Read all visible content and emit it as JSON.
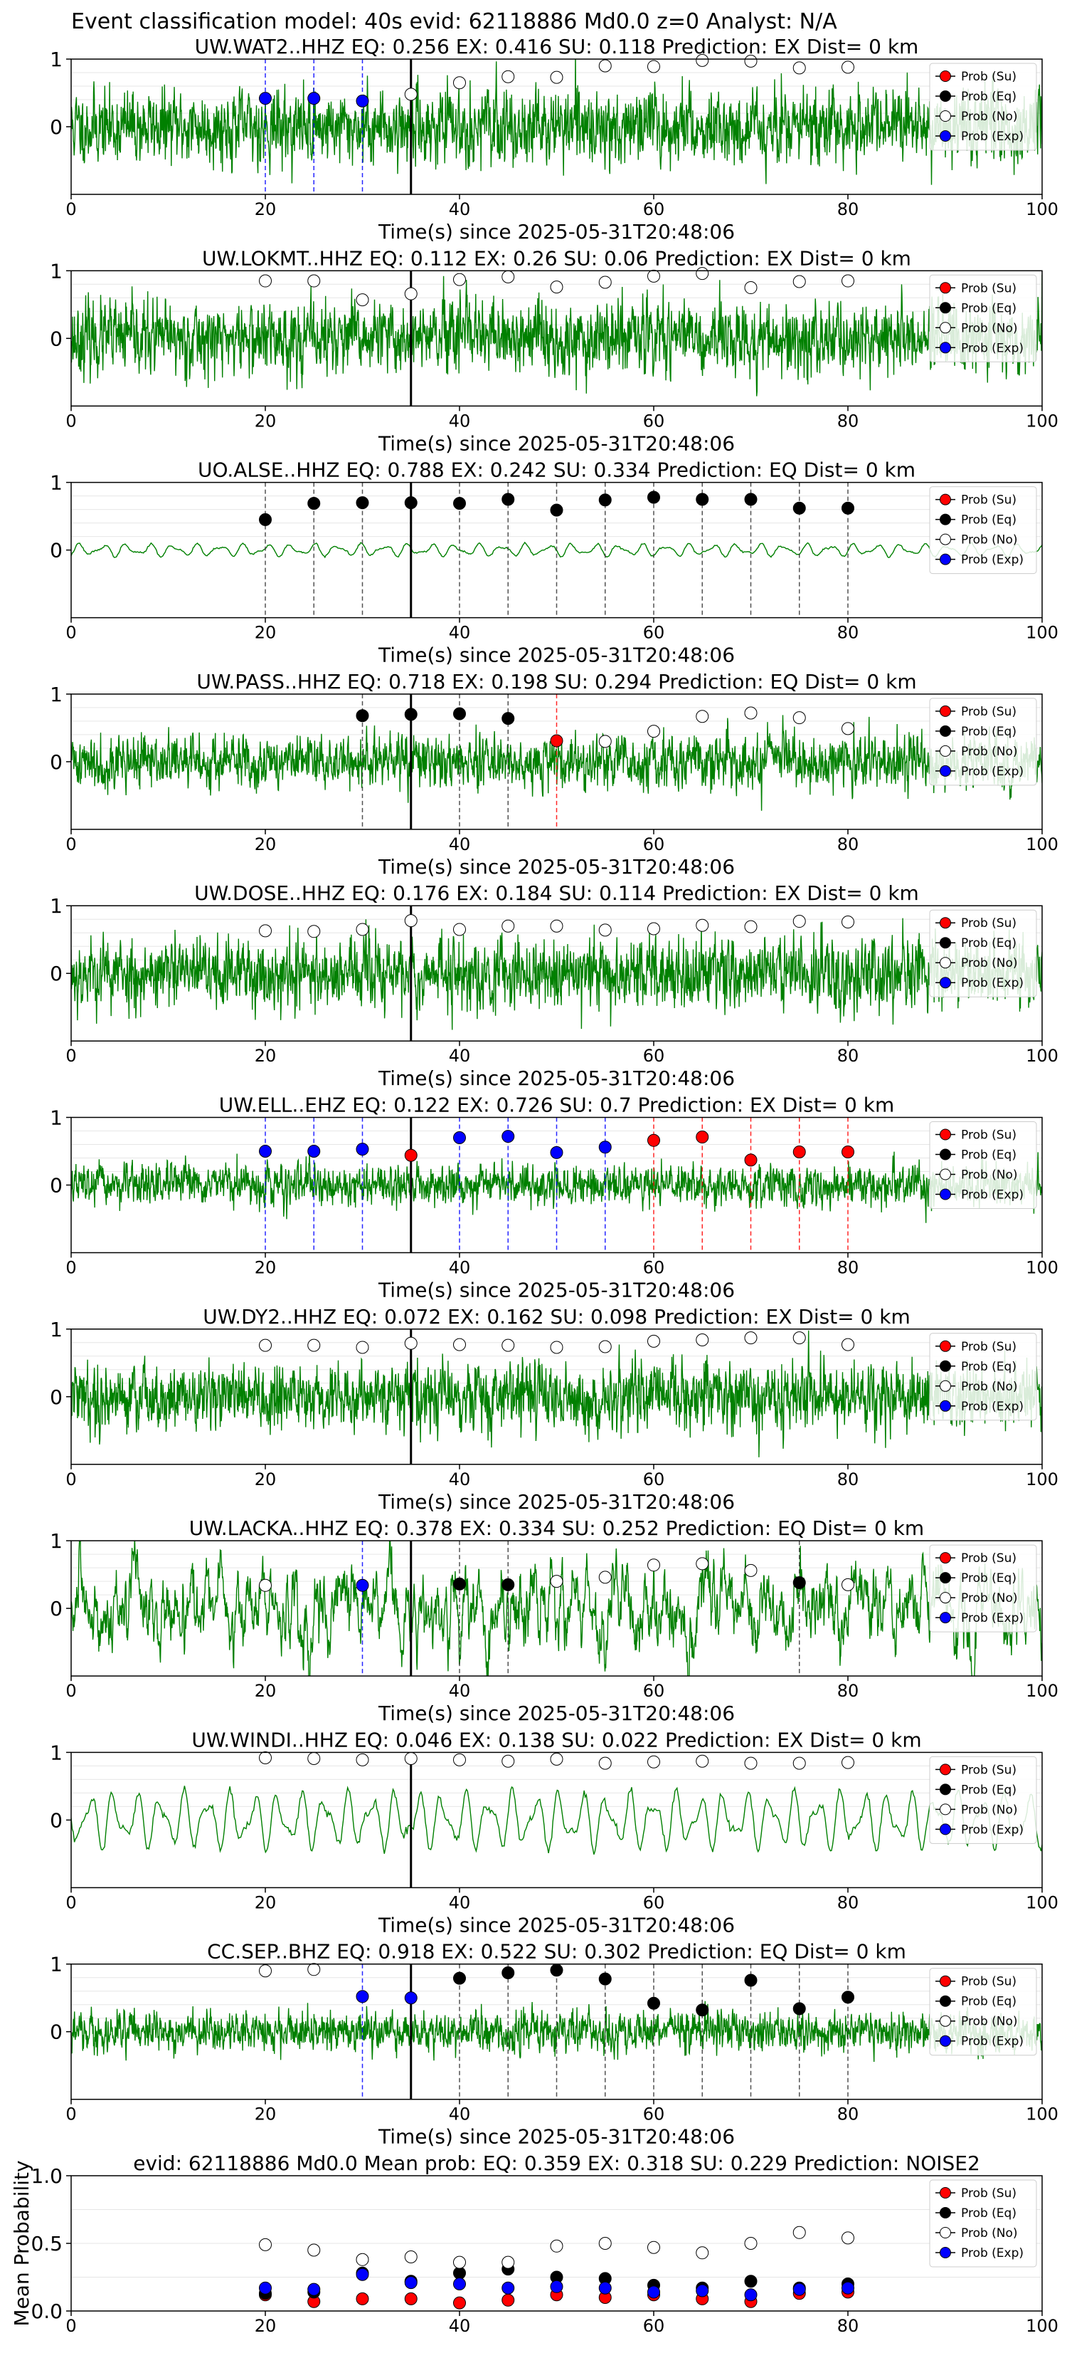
{
  "figure": {
    "title": "Event classification model: 40s evid: 62118886 Md0.0 z=0 Analyst: N/A"
  },
  "legend": {
    "entries": [
      {
        "label": "Prob (Su)",
        "class": "su",
        "color": "#ff0000"
      },
      {
        "label": "Prob (Eq)",
        "class": "eq",
        "color": "#000000"
      },
      {
        "label": "Prob (No)",
        "class": "no",
        "color": "#ffffff"
      },
      {
        "label": "Prob (Exp)",
        "class": "exp",
        "color": "#0000ff"
      }
    ]
  },
  "colors": {
    "waveform": "#008000",
    "su": "#ff0000",
    "eq": "#000000",
    "no": "#ffffff",
    "exp": "#0000ff",
    "origin_line": "#000000"
  },
  "chart_data": [
    {
      "type": "line",
      "title": "UW.WAT2..HHZ    EQ: 0.256  EX: 0.416  SU: 0.118   Prediction: EX    Dist= 0 km",
      "xlabel": "Time(s) since 2025-05-31T20:48:06",
      "xlim": [
        0,
        100
      ],
      "ylim": [
        -1,
        1
      ],
      "xticks": [
        "0",
        "20",
        "40",
        "60",
        "80",
        "100"
      ],
      "yticks": [
        "0",
        "1"
      ],
      "waveform": {
        "amplitude": 0.55,
        "style": "noisy",
        "seed": 11
      },
      "origin_time": 35,
      "points": [
        {
          "x": 20,
          "y": 0.42,
          "class": "exp"
        },
        {
          "x": 25,
          "y": 0.42,
          "class": "exp"
        },
        {
          "x": 30,
          "y": 0.38,
          "class": "exp"
        },
        {
          "x": 35,
          "y": 0.48,
          "class": "no"
        },
        {
          "x": 40,
          "y": 0.65,
          "class": "no"
        },
        {
          "x": 45,
          "y": 0.74,
          "class": "no"
        },
        {
          "x": 50,
          "y": 0.73,
          "class": "no"
        },
        {
          "x": 55,
          "y": 0.9,
          "class": "no"
        },
        {
          "x": 60,
          "y": 0.89,
          "class": "no"
        },
        {
          "x": 65,
          "y": 0.98,
          "class": "no"
        },
        {
          "x": 70,
          "y": 0.97,
          "class": "no"
        },
        {
          "x": 75,
          "y": 0.87,
          "class": "no"
        },
        {
          "x": 80,
          "y": 0.88,
          "class": "no"
        }
      ]
    },
    {
      "type": "line",
      "title": "UW.LOKMT..HHZ   EQ: 0.112  EX: 0.26  SU: 0.06   Prediction: EX    Dist= 0 km",
      "xlabel": "Time(s) since 2025-05-31T20:48:06",
      "xlim": [
        0,
        100
      ],
      "ylim": [
        -1,
        1
      ],
      "xticks": [
        "0",
        "20",
        "40",
        "60",
        "80",
        "100"
      ],
      "yticks": [
        "0",
        "1"
      ],
      "waveform": {
        "amplitude": 0.55,
        "style": "noisy",
        "seed": 23
      },
      "origin_time": 35,
      "points": [
        {
          "x": 20,
          "y": 0.85,
          "class": "no"
        },
        {
          "x": 25,
          "y": 0.85,
          "class": "no"
        },
        {
          "x": 30,
          "y": 0.57,
          "class": "no"
        },
        {
          "x": 35,
          "y": 0.66,
          "class": "no"
        },
        {
          "x": 40,
          "y": 0.87,
          "class": "no"
        },
        {
          "x": 45,
          "y": 0.91,
          "class": "no"
        },
        {
          "x": 50,
          "y": 0.76,
          "class": "no"
        },
        {
          "x": 55,
          "y": 0.83,
          "class": "no"
        },
        {
          "x": 60,
          "y": 0.92,
          "class": "no"
        },
        {
          "x": 65,
          "y": 0.96,
          "class": "no"
        },
        {
          "x": 70,
          "y": 0.75,
          "class": "no"
        },
        {
          "x": 75,
          "y": 0.84,
          "class": "no"
        },
        {
          "x": 80,
          "y": 0.85,
          "class": "no"
        }
      ]
    },
    {
      "type": "line",
      "title": "UO.ALSE..HHZ   EQ: 0.788  EX: 0.242  SU: 0.334   Prediction: EQ    Dist= 0 km",
      "xlabel": "Time(s) since 2025-05-31T20:48:06",
      "xlim": [
        0,
        100
      ],
      "ylim": [
        -1,
        1
      ],
      "xticks": [
        "0",
        "20",
        "40",
        "60",
        "80",
        "100"
      ],
      "yticks": [
        "0",
        "1"
      ],
      "waveform": {
        "amplitude": 0.12,
        "style": "smooth",
        "seed": 37
      },
      "origin_time": 35,
      "points": [
        {
          "x": 20,
          "y": 0.45,
          "class": "eq"
        },
        {
          "x": 25,
          "y": 0.69,
          "class": "eq"
        },
        {
          "x": 30,
          "y": 0.7,
          "class": "eq"
        },
        {
          "x": 35,
          "y": 0.7,
          "class": "eq"
        },
        {
          "x": 40,
          "y": 0.69,
          "class": "eq"
        },
        {
          "x": 45,
          "y": 0.75,
          "class": "eq"
        },
        {
          "x": 50,
          "y": 0.59,
          "class": "eq"
        },
        {
          "x": 55,
          "y": 0.74,
          "class": "eq"
        },
        {
          "x": 60,
          "y": 0.78,
          "class": "eq"
        },
        {
          "x": 65,
          "y": 0.75,
          "class": "eq"
        },
        {
          "x": 70,
          "y": 0.75,
          "class": "eq"
        },
        {
          "x": 75,
          "y": 0.62,
          "class": "eq"
        },
        {
          "x": 80,
          "y": 0.62,
          "class": "eq"
        }
      ]
    },
    {
      "type": "line",
      "title": "UW.PASS..HHZ   EQ: 0.718  EX: 0.198  SU: 0.294   Prediction: EQ    Dist= 0 km",
      "xlabel": "Time(s) since 2025-05-31T20:48:06",
      "xlim": [
        0,
        100
      ],
      "ylim": [
        -1,
        1
      ],
      "xticks": [
        "0",
        "20",
        "40",
        "60",
        "80",
        "100"
      ],
      "yticks": [
        "0",
        "1"
      ],
      "waveform": {
        "amplitude": 0.4,
        "style": "noisy",
        "seed": 41
      },
      "origin_time": 35,
      "points": [
        {
          "x": 30,
          "y": 0.68,
          "class": "eq"
        },
        {
          "x": 35,
          "y": 0.7,
          "class": "eq"
        },
        {
          "x": 40,
          "y": 0.71,
          "class": "eq"
        },
        {
          "x": 45,
          "y": 0.64,
          "class": "eq"
        },
        {
          "x": 50,
          "y": 0.31,
          "class": "su"
        },
        {
          "x": 55,
          "y": 0.3,
          "class": "no"
        },
        {
          "x": 60,
          "y": 0.45,
          "class": "no"
        },
        {
          "x": 65,
          "y": 0.67,
          "class": "no"
        },
        {
          "x": 70,
          "y": 0.72,
          "class": "no"
        },
        {
          "x": 75,
          "y": 0.65,
          "class": "no"
        },
        {
          "x": 80,
          "y": 0.49,
          "class": "no"
        }
      ]
    },
    {
      "type": "line",
      "title": "UW.DOSE..HHZ   EQ: 0.176  EX: 0.184  SU: 0.114   Prediction: EX    Dist= 0 km",
      "xlabel": "Time(s) since 2025-05-31T20:48:06",
      "xlim": [
        0,
        100
      ],
      "ylim": [
        -1,
        1
      ],
      "xticks": [
        "0",
        "20",
        "40",
        "60",
        "80",
        "100"
      ],
      "yticks": [
        "0",
        "1"
      ],
      "waveform": {
        "amplitude": 0.55,
        "style": "noisy",
        "seed": 53
      },
      "origin_time": 35,
      "points": [
        {
          "x": 20,
          "y": 0.63,
          "class": "no"
        },
        {
          "x": 25,
          "y": 0.62,
          "class": "no"
        },
        {
          "x": 30,
          "y": 0.65,
          "class": "no"
        },
        {
          "x": 35,
          "y": 0.78,
          "class": "no"
        },
        {
          "x": 40,
          "y": 0.65,
          "class": "no"
        },
        {
          "x": 45,
          "y": 0.7,
          "class": "no"
        },
        {
          "x": 50,
          "y": 0.7,
          "class": "no"
        },
        {
          "x": 55,
          "y": 0.64,
          "class": "no"
        },
        {
          "x": 60,
          "y": 0.66,
          "class": "no"
        },
        {
          "x": 65,
          "y": 0.71,
          "class": "no"
        },
        {
          "x": 70,
          "y": 0.69,
          "class": "no"
        },
        {
          "x": 75,
          "y": 0.77,
          "class": "no"
        },
        {
          "x": 80,
          "y": 0.76,
          "class": "no"
        }
      ]
    },
    {
      "type": "line",
      "title": "UW.ELL..EHZ   EQ: 0.122  EX: 0.726  SU: 0.7   Prediction: EX    Dist= 0 km",
      "xlabel": "Time(s) since 2025-05-31T20:48:06",
      "xlim": [
        0,
        100
      ],
      "ylim": [
        -1,
        1
      ],
      "xticks": [
        "0",
        "20",
        "40",
        "60",
        "80",
        "100"
      ],
      "yticks": [
        "0",
        "1"
      ],
      "waveform": {
        "amplitude": 0.3,
        "style": "noisy",
        "seed": 67
      },
      "origin_time": 35,
      "points": [
        {
          "x": 20,
          "y": 0.5,
          "class": "exp"
        },
        {
          "x": 25,
          "y": 0.5,
          "class": "exp"
        },
        {
          "x": 30,
          "y": 0.53,
          "class": "exp"
        },
        {
          "x": 35,
          "y": 0.44,
          "class": "su"
        },
        {
          "x": 40,
          "y": 0.7,
          "class": "exp"
        },
        {
          "x": 45,
          "y": 0.72,
          "class": "exp"
        },
        {
          "x": 50,
          "y": 0.48,
          "class": "exp"
        },
        {
          "x": 55,
          "y": 0.56,
          "class": "exp"
        },
        {
          "x": 60,
          "y": 0.66,
          "class": "su"
        },
        {
          "x": 65,
          "y": 0.71,
          "class": "su"
        },
        {
          "x": 70,
          "y": 0.37,
          "class": "su"
        },
        {
          "x": 75,
          "y": 0.49,
          "class": "su"
        },
        {
          "x": 80,
          "y": 0.49,
          "class": "su"
        }
      ]
    },
    {
      "type": "line",
      "title": "UW.DY2..HHZ   EQ: 0.072  EX: 0.162  SU: 0.098   Prediction: EX    Dist= 0 km",
      "xlabel": "Time(s) since 2025-05-31T20:48:06",
      "xlim": [
        0,
        100
      ],
      "ylim": [
        -1,
        1
      ],
      "xticks": [
        "0",
        "20",
        "40",
        "60",
        "80",
        "100"
      ],
      "yticks": [
        "0",
        "1"
      ],
      "waveform": {
        "amplitude": 0.5,
        "style": "noisy",
        "seed": 79
      },
      "origin_time": 35,
      "points": [
        {
          "x": 20,
          "y": 0.76,
          "class": "no"
        },
        {
          "x": 25,
          "y": 0.76,
          "class": "no"
        },
        {
          "x": 30,
          "y": 0.73,
          "class": "no"
        },
        {
          "x": 35,
          "y": 0.79,
          "class": "no"
        },
        {
          "x": 40,
          "y": 0.77,
          "class": "no"
        },
        {
          "x": 45,
          "y": 0.76,
          "class": "no"
        },
        {
          "x": 50,
          "y": 0.73,
          "class": "no"
        },
        {
          "x": 55,
          "y": 0.74,
          "class": "no"
        },
        {
          "x": 60,
          "y": 0.82,
          "class": "no"
        },
        {
          "x": 65,
          "y": 0.84,
          "class": "no"
        },
        {
          "x": 70,
          "y": 0.87,
          "class": "no"
        },
        {
          "x": 75,
          "y": 0.87,
          "class": "no"
        },
        {
          "x": 80,
          "y": 0.77,
          "class": "no"
        }
      ]
    },
    {
      "type": "line",
      "title": "UW.LACKA..HHZ   EQ: 0.378  EX: 0.334  SU: 0.252   Prediction: EQ    Dist= 0 km",
      "xlabel": "Time(s) since 2025-05-31T20:48:06",
      "xlim": [
        0,
        100
      ],
      "ylim": [
        -1,
        1
      ],
      "xticks": [
        "0",
        "20",
        "40",
        "60",
        "80",
        "100"
      ],
      "yticks": [
        "0",
        "1"
      ],
      "waveform": {
        "amplitude": 0.45,
        "style": "medium",
        "seed": 83
      },
      "origin_time": 35,
      "points": [
        {
          "x": 20,
          "y": 0.34,
          "class": "no"
        },
        {
          "x": 30,
          "y": 0.34,
          "class": "exp"
        },
        {
          "x": 40,
          "y": 0.36,
          "class": "eq"
        },
        {
          "x": 45,
          "y": 0.35,
          "class": "eq"
        },
        {
          "x": 50,
          "y": 0.4,
          "class": "no"
        },
        {
          "x": 55,
          "y": 0.46,
          "class": "no"
        },
        {
          "x": 60,
          "y": 0.64,
          "class": "no"
        },
        {
          "x": 65,
          "y": 0.66,
          "class": "no"
        },
        {
          "x": 70,
          "y": 0.56,
          "class": "no"
        },
        {
          "x": 75,
          "y": 0.38,
          "class": "eq"
        },
        {
          "x": 80,
          "y": 0.35,
          "class": "no"
        }
      ]
    },
    {
      "type": "line",
      "title": "UW.WINDI..HHZ   EQ: 0.046  EX: 0.138  SU: 0.022   Prediction: EX    Dist= 0 km",
      "xlabel": "Time(s) since 2025-05-31T20:48:06",
      "xlim": [
        0,
        100
      ],
      "ylim": [
        -1,
        1
      ],
      "xticks": [
        "0",
        "20",
        "40",
        "60",
        "80",
        "100"
      ],
      "yticks": [
        "0",
        "1"
      ],
      "waveform": {
        "amplitude": 0.55,
        "style": "smooth",
        "seed": 97
      },
      "origin_time": 35,
      "points": [
        {
          "x": 20,
          "y": 0.92,
          "class": "no"
        },
        {
          "x": 25,
          "y": 0.91,
          "class": "no"
        },
        {
          "x": 30,
          "y": 0.89,
          "class": "no"
        },
        {
          "x": 35,
          "y": 0.91,
          "class": "no"
        },
        {
          "x": 40,
          "y": 0.89,
          "class": "no"
        },
        {
          "x": 45,
          "y": 0.87,
          "class": "no"
        },
        {
          "x": 50,
          "y": 0.9,
          "class": "no"
        },
        {
          "x": 55,
          "y": 0.84,
          "class": "no"
        },
        {
          "x": 60,
          "y": 0.86,
          "class": "no"
        },
        {
          "x": 65,
          "y": 0.87,
          "class": "no"
        },
        {
          "x": 70,
          "y": 0.84,
          "class": "no"
        },
        {
          "x": 75,
          "y": 0.84,
          "class": "no"
        },
        {
          "x": 80,
          "y": 0.85,
          "class": "no"
        }
      ]
    },
    {
      "type": "line",
      "title": "CC.SEP..BHZ   EQ: 0.918  EX: 0.522  SU: 0.302   Prediction: EQ    Dist= 0 km",
      "xlabel": "Time(s) since 2025-05-31T20:48:06",
      "xlim": [
        0,
        100
      ],
      "ylim": [
        -1,
        1
      ],
      "xticks": [
        "0",
        "20",
        "40",
        "60",
        "80",
        "100"
      ],
      "yticks": [
        "0",
        "1"
      ],
      "waveform": {
        "amplitude": 0.3,
        "style": "noisy",
        "seed": 103
      },
      "origin_time": 35,
      "points": [
        {
          "x": 20,
          "y": 0.9,
          "class": "no"
        },
        {
          "x": 25,
          "y": 0.92,
          "class": "no"
        },
        {
          "x": 30,
          "y": 0.52,
          "class": "exp"
        },
        {
          "x": 35,
          "y": 0.5,
          "class": "exp"
        },
        {
          "x": 40,
          "y": 0.79,
          "class": "eq"
        },
        {
          "x": 45,
          "y": 0.87,
          "class": "eq"
        },
        {
          "x": 50,
          "y": 0.91,
          "class": "eq"
        },
        {
          "x": 55,
          "y": 0.78,
          "class": "eq"
        },
        {
          "x": 60,
          "y": 0.42,
          "class": "eq"
        },
        {
          "x": 65,
          "y": 0.32,
          "class": "eq"
        },
        {
          "x": 70,
          "y": 0.76,
          "class": "eq"
        },
        {
          "x": 75,
          "y": 0.34,
          "class": "eq"
        },
        {
          "x": 80,
          "y": 0.51,
          "class": "eq"
        }
      ]
    },
    {
      "type": "scatter",
      "title": "evid: 62118886  Md0.0   Mean prob:   EQ: 0.359  EX: 0.318  SU: 0.229   Prediction: NOISE2",
      "xlabel": "",
      "ylabel": "Mean Probability",
      "xlim": [
        0,
        100
      ],
      "ylim": [
        0,
        1
      ],
      "xticks": [
        "0",
        "20",
        "40",
        "60",
        "80",
        "100"
      ],
      "yticks": [
        "0.0",
        "0.5",
        "1.0"
      ],
      "x": [
        20,
        25,
        30,
        35,
        40,
        45,
        50,
        55,
        60,
        65,
        70,
        75,
        80
      ],
      "series": [
        {
          "name": "Prob (Su)",
          "class": "su",
          "values": [
            0.12,
            0.07,
            0.09,
            0.09,
            0.06,
            0.08,
            0.12,
            0.1,
            0.12,
            0.09,
            0.07,
            0.13,
            0.14
          ]
        },
        {
          "name": "Prob (Eq)",
          "class": "eq",
          "values": [
            0.13,
            0.14,
            0.28,
            0.22,
            0.28,
            0.31,
            0.25,
            0.24,
            0.19,
            0.17,
            0.22,
            0.17,
            0.2
          ]
        },
        {
          "name": "Prob (No)",
          "class": "no",
          "values": [
            0.49,
            0.45,
            0.38,
            0.4,
            0.36,
            0.36,
            0.48,
            0.5,
            0.47,
            0.43,
            0.5,
            0.58,
            0.54
          ]
        },
        {
          "name": "Prob (Exp)",
          "class": "exp",
          "values": [
            0.17,
            0.16,
            0.27,
            0.21,
            0.2,
            0.17,
            0.18,
            0.17,
            0.14,
            0.15,
            0.12,
            0.16,
            0.17
          ]
        }
      ]
    }
  ]
}
